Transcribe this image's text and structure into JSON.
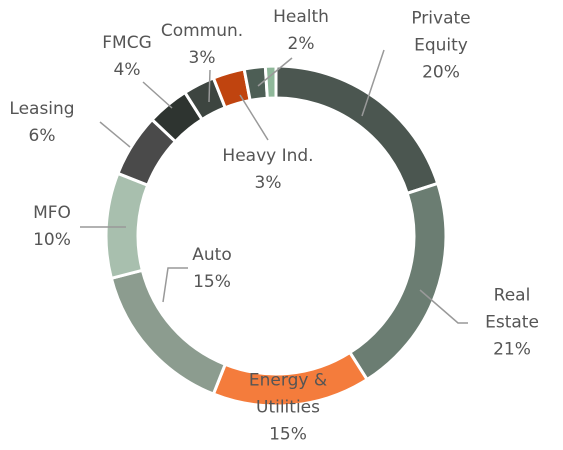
{
  "chart_data": {
    "type": "donut",
    "categories": [
      "Private Equity",
      "Real Estate",
      "Energy & Utilities",
      "Auto",
      "MFO",
      "Leasing",
      "FMCG",
      "Commun.",
      "Heavy Ind.",
      "Health",
      null
    ],
    "values": [
      20,
      21,
      15,
      15,
      10,
      6,
      4,
      3,
      3,
      2,
      1
    ],
    "value_labels": [
      "20%",
      "21%",
      "15%",
      "15%",
      "10%",
      "6%",
      "4%",
      "3%",
      "3%",
      "2%",
      null
    ],
    "colors": [
      "#4b5650",
      "#6b7d72",
      "#f47c3c",
      "#8c9c8f",
      "#a8bfae",
      "#4a4a4a",
      "#2e3430",
      "#3d4540",
      "#c0440f",
      "#4d5e55",
      "#8fb89a"
    ]
  }
}
